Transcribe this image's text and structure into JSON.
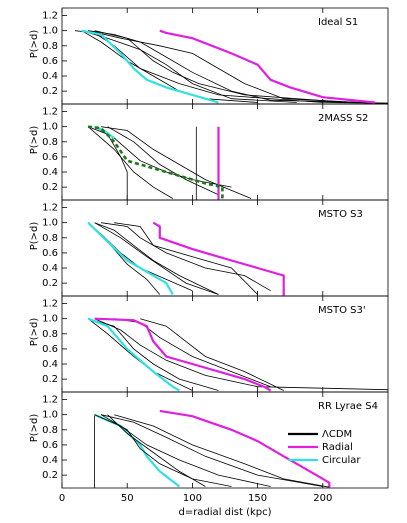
{
  "chart_data": [
    {
      "type": "line",
      "title": "Ideal S1",
      "y_label": "P(>d)",
      "xlim": [
        0,
        250
      ],
      "ylim": [
        0.03,
        1.3
      ],
      "yticks": [
        0.2,
        0.4,
        0.6,
        0.8,
        {
          "value": 1,
          "label": "1.0"
        },
        1.2
      ],
      "series": [
        {
          "color": "#000000",
          "x": [
            10,
            25,
            40,
            60,
            90,
            120,
            200,
            250
          ],
          "values": [
            1.0,
            0.97,
            0.8,
            0.5,
            0.3,
            0.15,
            0.05,
            0.04
          ]
        },
        {
          "color": "#000000",
          "x": [
            15,
            35,
            60,
            80,
            100,
            130,
            180
          ],
          "values": [
            1.0,
            0.9,
            0.75,
            0.55,
            0.3,
            0.1,
            0.05
          ]
        },
        {
          "color": "#000000",
          "x": [
            20,
            45,
            75,
            100,
            120,
            140,
            170,
            240
          ],
          "values": [
            1.0,
            0.9,
            0.8,
            0.7,
            0.5,
            0.3,
            0.1,
            0.04
          ]
        },
        {
          "color": "#000000",
          "x": [
            15,
            30,
            50,
            70,
            90,
            110,
            150
          ],
          "values": [
            1.0,
            0.85,
            0.6,
            0.4,
            0.2,
            0.1,
            0.05
          ]
        },
        {
          "color": "#000000",
          "x": [
            20,
            40,
            60,
            80,
            100,
            130,
            160,
            250
          ],
          "values": [
            1.0,
            0.95,
            0.85,
            0.65,
            0.45,
            0.2,
            0.08,
            0.04
          ]
        },
        {
          "color": "#000000",
          "x": [
            25,
            50,
            70,
            85,
            105,
            140,
            220
          ],
          "values": [
            1.0,
            0.9,
            0.6,
            0.45,
            0.3,
            0.15,
            0.05
          ]
        },
        {
          "color": "#e020e0",
          "x": [
            75,
            80,
            100,
            130,
            150,
            160,
            175,
            200,
            240
          ],
          "values": [
            1.0,
            0.97,
            0.9,
            0.7,
            0.55,
            0.35,
            0.25,
            0.12,
            0.05
          ]
        },
        {
          "color": "#33e0e0",
          "x": [
            15,
            30,
            45,
            55,
            65,
            80,
            110,
            120
          ],
          "values": [
            1.0,
            0.95,
            0.7,
            0.5,
            0.35,
            0.25,
            0.1,
            0.05
          ]
        }
      ]
    },
    {
      "type": "line",
      "title": "2MASS S2",
      "y_label": "P(>d)",
      "xlim": [
        0,
        250
      ],
      "ylim": [
        0.03,
        1.3
      ],
      "yticks": [
        0.2,
        0.4,
        0.6,
        0.8,
        {
          "value": 1,
          "label": "1.0"
        },
        1.2
      ],
      "series": [
        {
          "color": "#000000",
          "x": [
            20,
            35,
            45,
            50,
            50
          ],
          "values": [
            1.0,
            0.9,
            0.6,
            0.4,
            0.03
          ]
        },
        {
          "color": "#000000",
          "x": [
            25,
            40,
            60,
            80,
            100,
            130
          ],
          "values": [
            1.0,
            0.85,
            0.55,
            0.4,
            0.3,
            0.2
          ]
        },
        {
          "color": "#000000",
          "x": [
            30,
            50,
            70,
            90,
            110,
            145
          ],
          "values": [
            1.0,
            0.95,
            0.7,
            0.5,
            0.3,
            0.05
          ]
        },
        {
          "color": "#000000",
          "x": [
            20,
            40,
            55,
            70,
            85
          ],
          "values": [
            1.0,
            0.7,
            0.4,
            0.2,
            0.05
          ]
        },
        {
          "color": "#000000",
          "x": [
            103,
            103
          ],
          "values": [
            1.0,
            0.03
          ]
        },
        {
          "color": "#000000",
          "x": [
            35,
            55,
            75,
            95,
            120
          ],
          "values": [
            1.0,
            0.8,
            0.5,
            0.3,
            0.1
          ]
        },
        {
          "color": "#e020e0",
          "x": [
            120,
            120
          ],
          "values": [
            1.0,
            0.03
          ]
        },
        {
          "color": "#33e0e0",
          "x": [
            25,
            32,
            40
          ],
          "values": [
            1.0,
            0.95,
            0.85
          ]
        },
        {
          "color": "#1a7a1a",
          "dashed": true,
          "x": [
            20,
            30,
            40,
            50,
            70,
            90,
            110,
            123,
            123
          ],
          "values": [
            1.0,
            0.98,
            0.8,
            0.55,
            0.45,
            0.35,
            0.25,
            0.2,
            0.03
          ]
        }
      ]
    },
    {
      "type": "line",
      "title": "MSTO S3",
      "y_label": "P(>d)",
      "xlim": [
        0,
        250
      ],
      "ylim": [
        0.03,
        1.3
      ],
      "yticks": [
        0.2,
        0.4,
        0.6,
        0.8,
        {
          "value": 1,
          "label": "1.0"
        },
        1.2
      ],
      "series": [
        {
          "color": "#000000",
          "x": [
            20,
            30,
            45,
            60,
            80,
            100
          ],
          "values": [
            1.0,
            0.85,
            0.6,
            0.4,
            0.25,
            0.1
          ]
        },
        {
          "color": "#000000",
          "x": [
            25,
            40,
            55,
            70,
            90,
            120
          ],
          "values": [
            1.0,
            0.9,
            0.7,
            0.5,
            0.3,
            0.05
          ]
        },
        {
          "color": "#000000",
          "x": [
            30,
            50,
            60,
            80,
            110,
            140,
            160
          ],
          "values": [
            1.0,
            0.95,
            0.8,
            0.6,
            0.4,
            0.3,
            0.1
          ]
        },
        {
          "color": "#000000",
          "x": [
            20,
            35,
            50,
            65,
            75
          ],
          "values": [
            1.0,
            0.75,
            0.45,
            0.25,
            0.05
          ]
        },
        {
          "color": "#000000",
          "x": [
            40,
            60,
            70,
            100,
            130,
            150
          ],
          "values": [
            1.0,
            0.95,
            0.7,
            0.55,
            0.4,
            0.05
          ]
        },
        {
          "color": "#000000",
          "x": [
            25,
            45,
            65,
            95,
            120
          ],
          "values": [
            1.0,
            0.8,
            0.55,
            0.2,
            0.05
          ]
        },
        {
          "color": "#e020e0",
          "x": [
            70,
            75,
            75,
            100,
            130,
            150,
            170,
            170
          ],
          "values": [
            1.0,
            0.95,
            0.8,
            0.65,
            0.5,
            0.4,
            0.3,
            0.03
          ]
        },
        {
          "color": "#33e0e0",
          "x": [
            20,
            35,
            50,
            65,
            80,
            85
          ],
          "values": [
            1.0,
            0.75,
            0.5,
            0.35,
            0.2,
            0.05
          ]
        }
      ]
    },
    {
      "type": "line",
      "title": "MSTO S3'",
      "y_label": "P(>d)",
      "xlim": [
        0,
        250
      ],
      "ylim": [
        0.03,
        1.3
      ],
      "yticks": [
        0.2,
        0.4,
        0.6,
        0.8,
        {
          "value": 1,
          "label": "1.0"
        },
        1.2
      ],
      "series": [
        {
          "color": "#000000",
          "x": [
            20,
            40,
            55,
            70,
            90,
            120
          ],
          "values": [
            1.0,
            0.9,
            0.6,
            0.4,
            0.2,
            0.05
          ]
        },
        {
          "color": "#000000",
          "x": [
            25,
            45,
            60,
            80,
            110,
            150,
            250
          ],
          "values": [
            1.0,
            0.85,
            0.65,
            0.45,
            0.25,
            0.1,
            0.06
          ]
        },
        {
          "color": "#000000",
          "x": [
            40,
            60,
            75,
            100,
            130,
            160
          ],
          "values": [
            1.0,
            0.95,
            0.75,
            0.5,
            0.3,
            0.1
          ]
        },
        {
          "color": "#000000",
          "x": [
            20,
            35,
            55,
            70,
            100
          ],
          "values": [
            1.0,
            0.8,
            0.5,
            0.3,
            0.05
          ]
        },
        {
          "color": "#000000",
          "x": [
            60,
            80,
            95,
            110,
            140,
            170
          ],
          "values": [
            1.0,
            0.9,
            0.7,
            0.5,
            0.3,
            0.05
          ]
        },
        {
          "color": "#e020e0",
          "x": [
            25,
            55,
            65,
            70,
            80,
            100,
            140,
            155,
            160
          ],
          "values": [
            1.0,
            0.98,
            0.9,
            0.7,
            0.5,
            0.4,
            0.2,
            0.1,
            0.05
          ]
        },
        {
          "color": "#33e0e0",
          "x": [
            20,
            35,
            50,
            60,
            70,
            85,
            90
          ],
          "values": [
            1.0,
            0.9,
            0.6,
            0.45,
            0.3,
            0.1,
            0.05
          ]
        }
      ]
    },
    {
      "type": "line",
      "title": "RR Lyrae S4",
      "y_label": "P(>d)",
      "x_label": "d=radial dist (kpc)",
      "xlim": [
        0,
        250
      ],
      "ylim": [
        0.03,
        1.3
      ],
      "xticks": [
        0,
        50,
        100,
        150,
        200
      ],
      "yticks": [
        0.2,
        0.4,
        0.6,
        0.8,
        {
          "value": 1,
          "label": "1.0"
        },
        1.2
      ],
      "legend": "lower right",
      "series": [
        {
          "name": "ΛCDM",
          "color": "#000000",
          "x": [
            25,
            25
          ],
          "values": [
            1.0,
            0.03
          ]
        },
        {
          "name": "Radial",
          "color": "#e020e0",
          "x": [
            75,
            100,
            130,
            150,
            170,
            195,
            205,
            205
          ],
          "values": [
            1.05,
            0.98,
            0.8,
            0.65,
            0.45,
            0.2,
            0.1,
            0.03
          ]
        },
        {
          "name": "Circular",
          "color": "#33e0e0",
          "x": [
            25,
            45,
            60,
            65,
            75,
            90
          ],
          "values": [
            1.0,
            0.85,
            0.6,
            0.45,
            0.25,
            0.05
          ]
        },
        {
          "color": "#000000",
          "x": [
            25,
            45,
            65,
            90,
            120,
            160
          ],
          "values": [
            1.0,
            0.85,
            0.6,
            0.4,
            0.2,
            0.05
          ]
        },
        {
          "color": "#000000",
          "x": [
            30,
            55,
            80,
            110,
            150,
            200
          ],
          "values": [
            1.0,
            0.9,
            0.7,
            0.45,
            0.2,
            0.05
          ]
        },
        {
          "color": "#000000",
          "x": [
            35,
            50,
            70,
            90,
            110
          ],
          "values": [
            1.0,
            0.75,
            0.5,
            0.25,
            0.05
          ]
        },
        {
          "color": "#000000",
          "x": [
            40,
            70,
            100,
            140,
            170,
            205
          ],
          "values": [
            1.0,
            0.85,
            0.6,
            0.35,
            0.15,
            0.04
          ]
        },
        {
          "color": "#000000",
          "x": [
            30,
            50,
            60,
            75,
            100,
            130
          ],
          "values": [
            1.0,
            0.8,
            0.55,
            0.35,
            0.15,
            0.05
          ]
        }
      ]
    }
  ]
}
